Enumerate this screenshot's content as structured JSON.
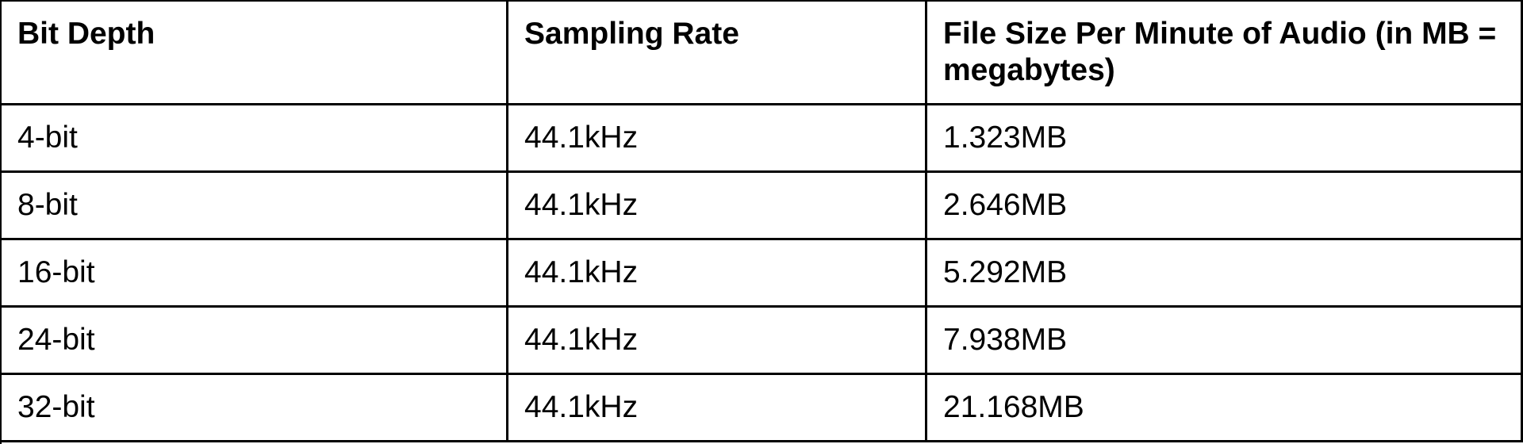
{
  "table": {
    "header": [
      "Bit Depth",
      "Sampling Rate",
      "File Size Per Minute of Audio (in MB = megabytes)"
    ],
    "rows": [
      [
        "4-bit",
        "44.1kHz",
        "1.323MB"
      ],
      [
        "8-bit",
        "44.1kHz",
        "2.646MB"
      ],
      [
        "16-bit",
        "44.1kHz",
        "5.292MB"
      ],
      [
        "24-bit",
        "44.1kHz",
        "7.938MB"
      ],
      [
        "32-bit",
        "44.1kHz",
        "21.168MB"
      ]
    ]
  }
}
